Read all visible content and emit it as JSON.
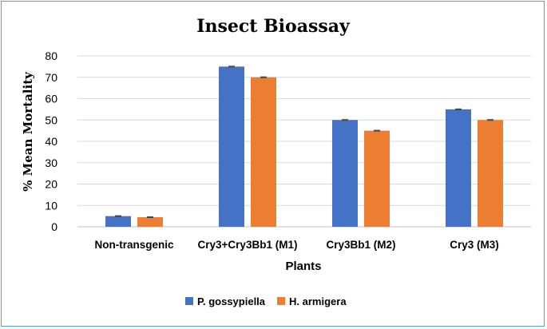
{
  "chart_data": {
    "type": "bar",
    "title": "Insect Bioassay",
    "xlabel": "Plants",
    "ylabel": "% Mean Mortality",
    "ylim": [
      0,
      80
    ],
    "yticks": [
      0,
      10,
      20,
      30,
      40,
      50,
      60,
      70,
      80
    ],
    "categories": [
      "Non-transgenic",
      "Cry3+Cry3Bb1 (M1)",
      "Cry3Bb1 (M2)",
      "Cry3 (M3)"
    ],
    "series": [
      {
        "name": "P. gossypiella",
        "color": "#4472c4",
        "values": [
          5,
          75,
          50,
          55
        ],
        "errors": [
          0.2,
          0.2,
          0.2,
          0.2
        ]
      },
      {
        "name": "H. armigera",
        "color": "#ed7d31",
        "values": [
          4.5,
          70,
          45,
          50
        ],
        "errors": [
          0.2,
          0.2,
          0.2,
          0.2
        ]
      }
    ],
    "grid": true,
    "legend_position": "bottom"
  }
}
